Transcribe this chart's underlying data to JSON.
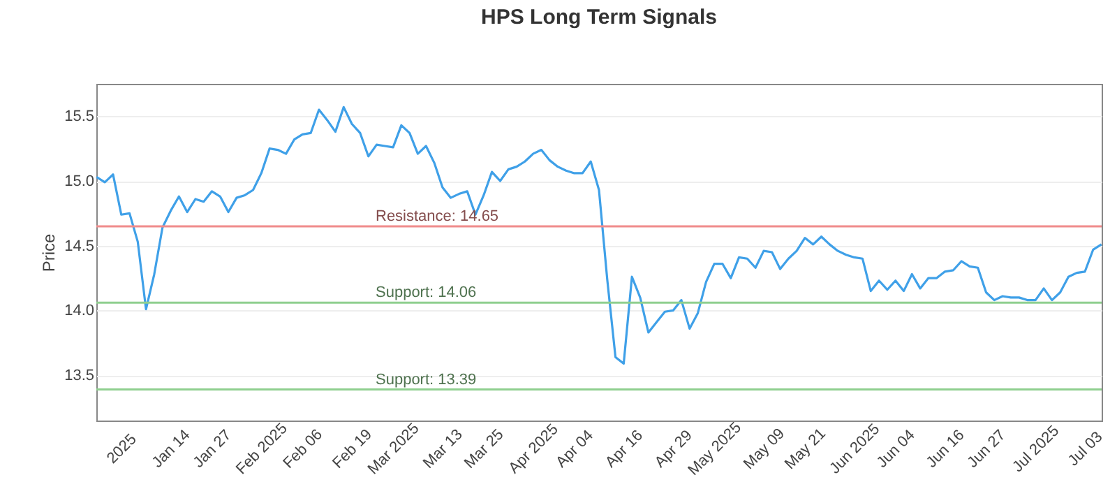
{
  "chart_data": {
    "type": "line",
    "title": "HPS Long Term Signals",
    "ylabel": "Price",
    "categories": [
      null,
      null,
      null,
      "2025",
      null,
      null,
      null,
      null,
      null,
      "Jan 14",
      null,
      null,
      null,
      null,
      "Jan 27",
      null,
      null,
      null,
      null,
      null,
      "Feb 2025",
      null,
      null,
      null,
      null,
      "Feb 06",
      null,
      null,
      null,
      null,
      null,
      "Feb 19",
      null,
      null,
      null,
      null,
      "Mar 2025",
      null,
      null,
      null,
      null,
      null,
      "Mar 13",
      null,
      null,
      null,
      null,
      "Mar 25",
      null,
      null,
      null,
      null,
      null,
      "Apr 2025",
      null,
      null,
      null,
      null,
      "Apr 04",
      null,
      null,
      null,
      null,
      null,
      "Apr 16",
      null,
      null,
      null,
      null,
      null,
      "Apr 29",
      null,
      null,
      null,
      null,
      "May 2025",
      null,
      null,
      null,
      null,
      null,
      "May 09",
      null,
      null,
      null,
      null,
      "May 21",
      null,
      null,
      null,
      null,
      null,
      "Jun 2025",
      null,
      null,
      null,
      null,
      "Jun 04",
      null,
      null,
      null,
      null,
      null,
      "Jun 16",
      null,
      null,
      null,
      null,
      "Jun 27",
      null,
      null,
      null,
      null,
      null,
      "Jul 2025",
      null,
      null,
      null,
      null,
      null,
      "Jul 03",
      null,
      null
    ],
    "series": [
      {
        "color": "#3fa0e8",
        "values": [
          15.03,
          14.99,
          15.05,
          14.74,
          14.75,
          14.53,
          14.01,
          14.28,
          14.64,
          14.77,
          14.88,
          14.76,
          14.86,
          14.84,
          14.92,
          14.88,
          14.76,
          14.87,
          14.89,
          14.93,
          15.06,
          15.25,
          15.24,
          15.21,
          15.32,
          15.36,
          15.37,
          15.55,
          15.47,
          15.38,
          15.57,
          15.44,
          15.37,
          15.19,
          15.28,
          15.27,
          15.26,
          15.43,
          15.37,
          15.21,
          15.27,
          15.14,
          14.95,
          14.87,
          14.9,
          14.92,
          14.74,
          14.89,
          15.07,
          15.0,
          15.09,
          15.11,
          15.15,
          15.21,
          15.24,
          15.16,
          15.11,
          15.08,
          15.06,
          15.06,
          15.15,
          14.93,
          14.24,
          13.64,
          13.59,
          14.26,
          14.1,
          13.83,
          13.91,
          13.99,
          14.0,
          14.08,
          13.86,
          13.98,
          14.22,
          14.36,
          14.36,
          14.25,
          14.41,
          14.4,
          14.33,
          14.46,
          14.45,
          14.32,
          14.4,
          14.46,
          14.56,
          14.51,
          14.57,
          14.51,
          14.46,
          14.43,
          14.41,
          14.4,
          14.15,
          14.23,
          14.16,
          14.23,
          14.15,
          14.28,
          14.17,
          14.25,
          14.25,
          14.3,
          14.31,
          14.38,
          14.34,
          14.33,
          14.14,
          14.08,
          14.11,
          14.1,
          14.1,
          14.08,
          14.08,
          14.17,
          14.08,
          14.14,
          14.26,
          14.29,
          14.3,
          14.47,
          14.51
        ]
      }
    ],
    "ylim": [
      13.15,
      15.75
    ],
    "yticks": [
      13.5,
      {
        "value": 14,
        "label": "14.0"
      },
      14.5,
      {
        "value": 15,
        "label": "15.0"
      },
      15.5
    ],
    "grid": "y",
    "ref_lines": [
      {
        "axis": "y",
        "value": 14.65,
        "label": "Resistance: 14.65",
        "color": "#f08c8c"
      },
      {
        "axis": "y",
        "value": 14.06,
        "label": "Support: 14.06",
        "color": "#8fcf8f"
      },
      {
        "axis": "y",
        "value": 13.39,
        "label": "Support: 13.39",
        "color": "#8fcf8f"
      }
    ]
  }
}
